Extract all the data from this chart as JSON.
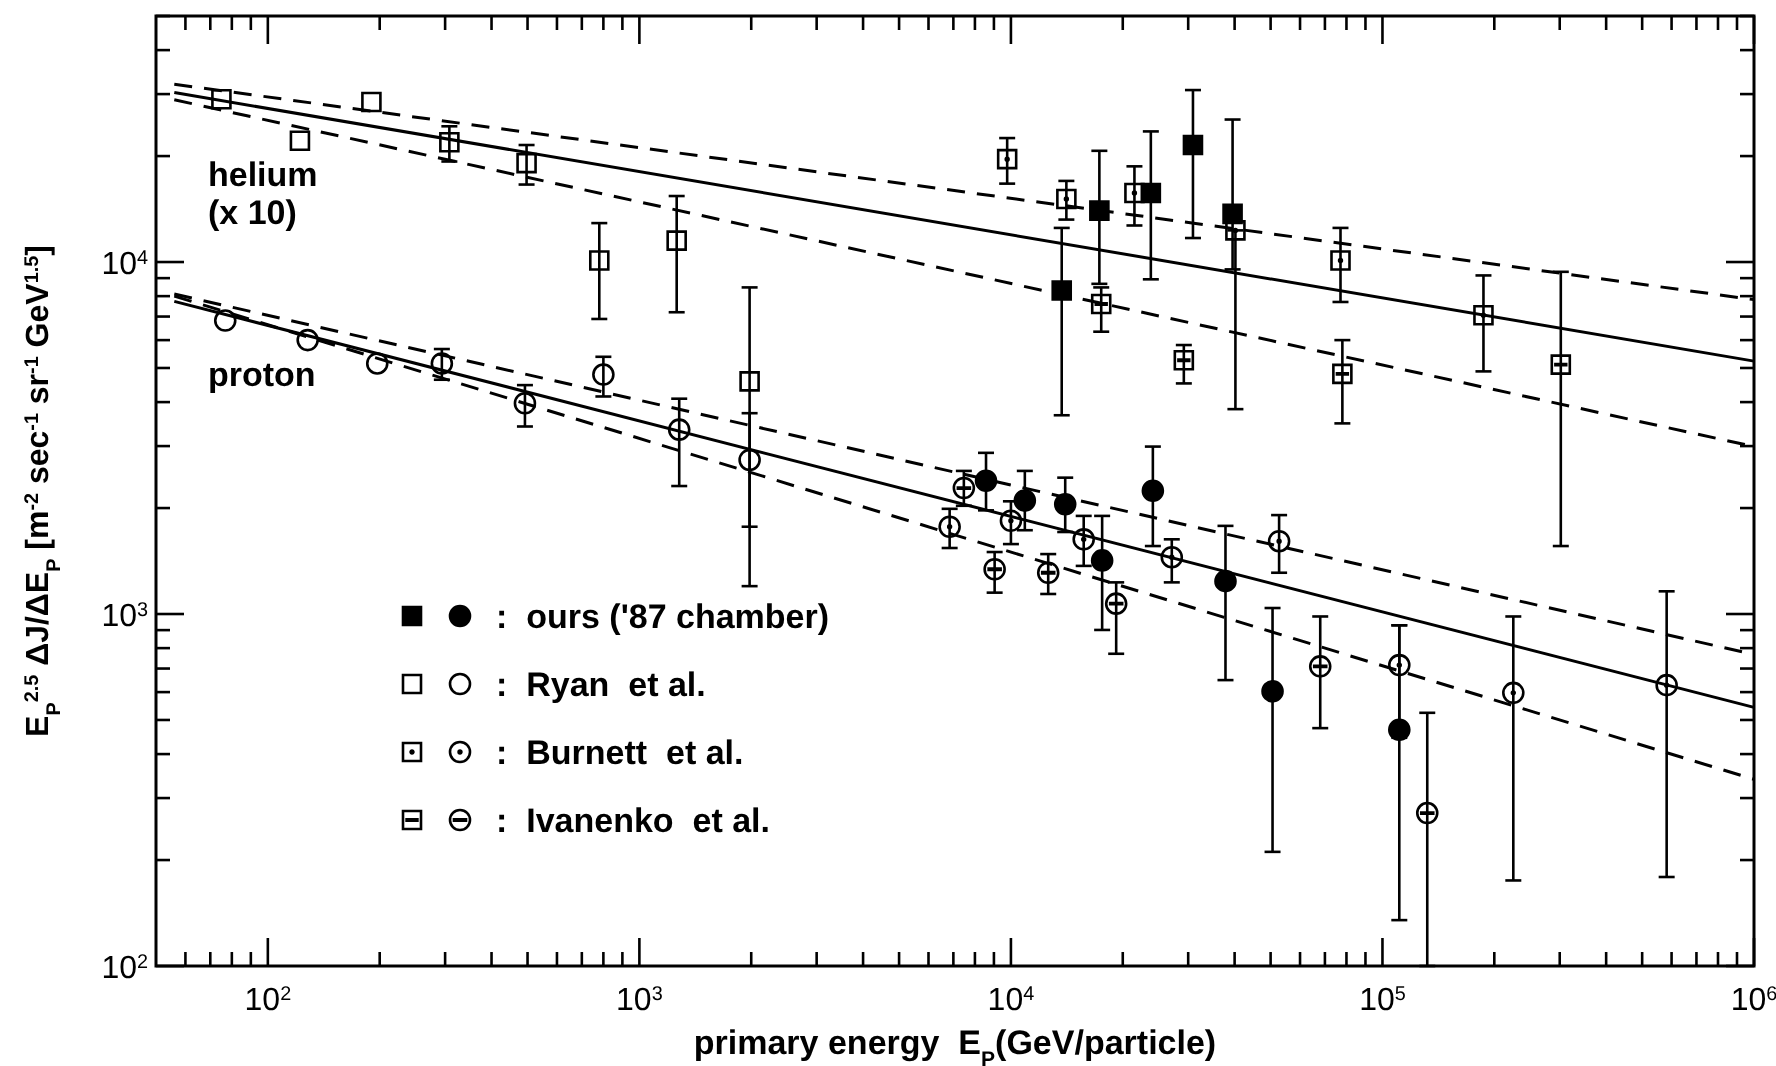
{
  "chart_data": {
    "type": "scatter",
    "xlabel": "primary energy  E$_{P}$(GeV/particle)",
    "ylabel": "E$_{P}$$^{2.5}$ ΔJ/ΔE$_{P}$ [m$^{-2}$ sec$^{-1}$ sr$^{-1}$ GeV$^{1.5}$]",
    "log": "xy",
    "xlim": [
      50,
      1000000
    ],
    "ylim": [
      100,
      50000
    ],
    "xticks": [
      {
        "value": 60,
        "label": null
      },
      {
        "value": 70,
        "label": null
      },
      {
        "value": 80,
        "label": null
      },
      {
        "value": 90,
        "label": null
      },
      {
        "value": 100,
        "label": "10$^{2}$"
      },
      {
        "value": 200,
        "label": null
      },
      {
        "value": 300,
        "label": null
      },
      {
        "value": 400,
        "label": null
      },
      {
        "value": 500,
        "label": null
      },
      {
        "value": 600,
        "label": null
      },
      {
        "value": 700,
        "label": null
      },
      {
        "value": 800,
        "label": null
      },
      {
        "value": 900,
        "label": null
      },
      {
        "value": 1000,
        "label": "10$^{3}$"
      },
      {
        "value": 2000,
        "label": null
      },
      {
        "value": 3000,
        "label": null
      },
      {
        "value": 4000,
        "label": null
      },
      {
        "value": 5000,
        "label": null
      },
      {
        "value": 6000,
        "label": null
      },
      {
        "value": 7000,
        "label": null
      },
      {
        "value": 8000,
        "label": null
      },
      {
        "value": 9000,
        "label": null
      },
      {
        "value": 10000,
        "label": "10$^{4}$"
      },
      {
        "value": 20000,
        "label": null
      },
      {
        "value": 30000,
        "label": null
      },
      {
        "value": 40000,
        "label": null
      },
      {
        "value": 50000,
        "label": null
      },
      {
        "value": 60000,
        "label": null
      },
      {
        "value": 70000,
        "label": null
      },
      {
        "value": 80000,
        "label": null
      },
      {
        "value": 90000,
        "label": null
      },
      {
        "value": 100000,
        "label": "10$^{5}$"
      },
      {
        "value": 200000,
        "label": null
      },
      {
        "value": 300000,
        "label": null
      },
      {
        "value": 400000,
        "label": null
      },
      {
        "value": 500000,
        "label": null
      },
      {
        "value": 600000,
        "label": null
      },
      {
        "value": 700000,
        "label": null
      },
      {
        "value": 800000,
        "label": null
      },
      {
        "value": 900000,
        "label": null
      },
      {
        "value": 1000000,
        "label": "10$^{6}$"
      }
    ],
    "yticks": [
      {
        "value": 100,
        "label": "10$^{2}$"
      },
      {
        "value": 200,
        "label": null
      },
      {
        "value": 300,
        "label": null
      },
      {
        "value": 400,
        "label": null
      },
      {
        "value": 500,
        "label": null
      },
      {
        "value": 600,
        "label": null
      },
      {
        "value": 700,
        "label": null
      },
      {
        "value": 800,
        "label": null
      },
      {
        "value": 900,
        "label": null
      },
      {
        "value": 1000,
        "label": "10$^{3}$"
      },
      {
        "value": 2000,
        "label": null
      },
      {
        "value": 3000,
        "label": null
      },
      {
        "value": 4000,
        "label": null
      },
      {
        "value": 5000,
        "label": null
      },
      {
        "value": 6000,
        "label": null
      },
      {
        "value": 7000,
        "label": null
      },
      {
        "value": 8000,
        "label": null
      },
      {
        "value": 9000,
        "label": null
      },
      {
        "value": 10000,
        "label": "10$^{4}$"
      },
      {
        "value": 20000,
        "label": null
      },
      {
        "value": 30000,
        "label": null
      },
      {
        "value": 40000,
        "label": null
      },
      {
        "value": 50000,
        "label": null
      }
    ],
    "legend": "bottom left",
    "annotations": [
      "helium (x 10)",
      "proton"
    ],
    "series": [
      {
        "marker": "square",
        "color": "#000000",
        "x": [
          13700,
          17300,
          23800,
          30900,
          39500
        ],
        "values": [
          8300,
          14000,
          15700,
          21500,
          13700
        ],
        "errors": [
          [
            3670,
            12500
          ],
          [
            8670,
            20700
          ],
          [
            8930,
            23500
          ],
          [
            11700,
            30800
          ],
          [
            9530,
            25400
          ]
        ]
      },
      {
        "marker": "square",
        "color": "#000000",
        "x": [
          75,
          122,
          190,
          308,
          497,
          780,
          1260,
          1980
        ],
        "values": [
          29000,
          22100,
          28500,
          21900,
          19100,
          10100,
          11500,
          4580
        ],
        "errors": [
          null,
          null,
          null,
          [
            19300,
            24300
          ],
          [
            16600,
            21500
          ],
          [
            6890,
            12900
          ],
          [
            7200,
            15400
          ],
          [
            1200,
            8470
          ]
        ]
      },
      {
        "marker": "square",
        "color": "#000000",
        "x": [
          9770,
          14100,
          21500,
          40200,
          77100,
          187000
        ],
        "values": [
          19600,
          15100,
          15700,
          12300,
          10100,
          7060
        ],
        "errors": [
          [
            16700,
            22500
          ],
          [
            13200,
            17000
          ],
          [
            12700,
            18700
          ],
          [
            3820,
            12300
          ],
          [
            7700,
            12500
          ],
          [
            4890,
            9160
          ]
        ]
      },
      {
        "marker": "square",
        "color": "#000000",
        "x": [
          17500,
          29200,
          78000,
          302000
        ],
        "values": [
          7600,
          5260,
          4810,
          5110
        ],
        "errors": [
          [
            6340,
            8470
          ],
          [
            4520,
            5810
          ],
          [
            3480,
            6000
          ],
          [
            1560,
            9380
          ]
        ]
      },
      {
        "marker": "circle",
        "color": "#000000",
        "name": ":  ours ('87 chamber)",
        "x": [
          8570,
          10900,
          14000,
          17600,
          24100,
          37800,
          50600,
          111000
        ],
        "values": [
          2390,
          2100,
          2050,
          1420,
          2240,
          1240,
          603,
          469
        ],
        "errors": [
          [
            1970,
            2870
          ],
          [
            1730,
            2550
          ],
          [
            1710,
            2440
          ],
          [
            901,
            1900
          ],
          [
            1560,
            2990
          ],
          [
            649,
            1780
          ],
          [
            211,
            1040
          ],
          [
            135,
            929
          ]
        ]
      },
      {
        "marker": "circle",
        "color": "#000000",
        "name": ":  Ryan  et al.",
        "x": [
          76.8,
          128,
          197,
          294,
          492,
          800,
          1280,
          1980
        ],
        "values": [
          6820,
          6000,
          5150,
          5150,
          3970,
          4790,
          3340,
          2740
        ],
        "errors": [
          null,
          null,
          null,
          [
            4630,
            5660
          ],
          [
            3410,
            4470
          ],
          [
            4150,
            5380
          ],
          [
            2310,
            4090
          ],
          [
            1770,
            3720
          ]
        ]
      },
      {
        "marker": "circle",
        "color": "#000000",
        "name": ":  Burnett  et al.",
        "x": [
          6840,
          10000,
          15700,
          27100,
          52700,
          111000,
          225000,
          582000
        ],
        "values": [
          1770,
          1840,
          1630,
          1450,
          1610,
          716,
          597,
          628
        ],
        "errors": [
          [
            1540,
            1990
          ],
          [
            1580,
            2090
          ],
          [
            1370,
            1900
          ],
          [
            1230,
            1630
          ],
          [
            1310,
            1910
          ],
          [
            445,
            929
          ],
          [
            175,
            984
          ],
          [
            179,
            1160
          ]
        ]
      },
      {
        "marker": "circle",
        "color": "#000000",
        "name": ":  Ivanenko  et al.",
        "x": [
          7470,
          9040,
          12600,
          19200,
          68000,
          132000
        ],
        "values": [
          2280,
          1340,
          1310,
          1070,
          710,
          272
        ],
        "errors": [
          [
            2030,
            2550
          ],
          [
            1150,
            1500
          ],
          [
            1140,
            1480
          ],
          [
            771,
            1230
          ],
          [
            474,
            984
          ],
          [
            100,
            524
          ]
        ]
      },
      {
        "type": "line",
        "line_style": "solid",
        "color": "#000000",
        "x": [
          56,
          1000000
        ],
        "values": [
          30300,
          5230
        ]
      },
      {
        "type": "line",
        "line_style": "dashed",
        "color": "#000000",
        "x": [
          56,
          1000000
        ],
        "values": [
          32000,
          7820
        ]
      },
      {
        "type": "line",
        "line_style": "dashed",
        "color": "#000000",
        "x": [
          56,
          1000000
        ],
        "values": [
          28900,
          2990
        ]
      },
      {
        "type": "line",
        "line_style": "solid",
        "color": "#000000",
        "x": [
          56,
          1000000
        ],
        "values": [
          7730,
          543
        ]
      },
      {
        "type": "line",
        "line_style": "dashed",
        "color": "#000000",
        "x": [
          56,
          1000000
        ],
        "values": [
          8110,
          767
        ]
      },
      {
        "type": "line",
        "line_style": "dashed",
        "color": "#000000",
        "x": [
          56,
          1000000
        ],
        "values": [
          8000,
          339
        ]
      }
    ]
  }
}
